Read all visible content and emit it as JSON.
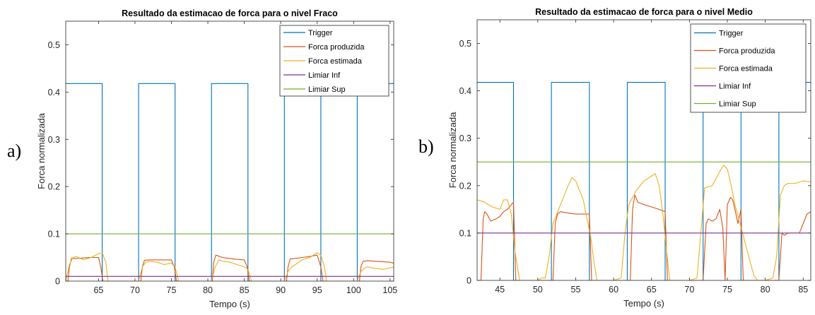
{
  "chart_data": [
    {
      "type": "line",
      "panel_label": "a)",
      "title": "Resultado da estimacao de forca para o nivel Fraco",
      "xlabel": "Tempo (s)",
      "ylabel": "Forca normalizada",
      "xlim": [
        60.5,
        105.5
      ],
      "ylim": [
        0,
        0.55
      ],
      "xticks": [
        65,
        70,
        75,
        80,
        85,
        90,
        95,
        100,
        105
      ],
      "yticks": [
        0,
        0.1,
        0.2,
        0.3,
        0.4,
        0.5
      ],
      "grid": false,
      "legend_position": "top-right",
      "series": [
        {
          "name": "Trigger",
          "color": "#0072BD",
          "x": [
            60.5,
            65.5,
            65.5,
            70.5,
            70.5,
            75.5,
            75.5,
            80.5,
            80.5,
            85.5,
            85.5,
            90.5,
            90.5,
            95.5,
            95.5,
            100.5,
            100.5,
            105.5
          ],
          "y": [
            0.418,
            0.418,
            0,
            0,
            0.418,
            0.418,
            0,
            0,
            0.418,
            0.418,
            0,
            0,
            0.418,
            0.418,
            0,
            0,
            0.418,
            0.418
          ]
        },
        {
          "name": "Forca produzida",
          "color": "#D95319",
          "x": [
            60.8,
            61.0,
            61.3,
            62,
            63,
            64,
            65,
            65.3,
            65.6,
            70.8,
            71.0,
            71.3,
            72,
            73,
            74,
            75,
            75.4,
            75.7,
            80.6,
            80.8,
            81.1,
            82,
            83,
            84,
            85,
            85.4,
            85.7,
            90.8,
            91.0,
            91.3,
            92,
            93,
            94,
            95,
            95.5,
            95.8,
            100.8,
            101.0,
            101.3,
            102,
            103,
            104,
            105,
            105.5
          ],
          "y": [
            0,
            0.03,
            0.048,
            0.048,
            0.049,
            0.05,
            0.05,
            0.03,
            0,
            0,
            0.03,
            0.044,
            0.045,
            0.045,
            0.045,
            0.045,
            0.03,
            0,
            0,
            0.04,
            0.055,
            0.05,
            0.048,
            0.046,
            0.045,
            0.03,
            0,
            0,
            0.03,
            0.047,
            0.048,
            0.05,
            0.052,
            0.055,
            0.03,
            0,
            0,
            0.03,
            0.042,
            0.043,
            0.042,
            0.041,
            0.04,
            0.038
          ]
        },
        {
          "name": "Forca estimada",
          "color": "#EDB120",
          "x": [
            60.5,
            61,
            61.5,
            62,
            62.5,
            63,
            64,
            65,
            65.5,
            66,
            66.3,
            70.5,
            71,
            71.5,
            72,
            73,
            74,
            75,
            75.5,
            76,
            80.5,
            81,
            81.5,
            82,
            83,
            84,
            85,
            85.5,
            86,
            90.5,
            91,
            91.5,
            92,
            93,
            94,
            95,
            95.5,
            96,
            96.3,
            100.5,
            101,
            101.5,
            102,
            103,
            104,
            105,
            105.5
          ],
          "y": [
            0,
            0.035,
            0.05,
            0.052,
            0.048,
            0.045,
            0.05,
            0.058,
            0.06,
            0.04,
            0,
            0,
            0.03,
            0.04,
            0.042,
            0.04,
            0.035,
            0.038,
            0.03,
            0,
            0,
            0.03,
            0.045,
            0.042,
            0.04,
            0.035,
            0.03,
            0.025,
            0,
            0,
            0.02,
            0.03,
            0.035,
            0.045,
            0.05,
            0.06,
            0.055,
            0.03,
            0,
            0,
            0.02,
            0.028,
            0.03,
            0.027,
            0.025,
            0.028,
            0.03
          ]
        },
        {
          "name": "Limiar Inf",
          "color": "#7E2F8E",
          "x": [
            60.5,
            105.5
          ],
          "y": [
            0.01,
            0.01
          ]
        },
        {
          "name": "Limiar Sup",
          "color": "#77AC30",
          "x": [
            60.5,
            105.5
          ],
          "y": [
            0.1,
            0.1
          ]
        }
      ]
    },
    {
      "type": "line",
      "panel_label": "b)",
      "title": "Resultado da estimacao de forca para o nivel Medio",
      "xlabel": "Tempo (s)",
      "ylabel": "Forca normalizada",
      "xlim": [
        42,
        86
      ],
      "ylim": [
        0,
        0.55
      ],
      "xticks": [
        45,
        50,
        55,
        60,
        65,
        70,
        75,
        80,
        85
      ],
      "yticks": [
        0,
        0.1,
        0.2,
        0.3,
        0.4,
        0.5
      ],
      "grid": false,
      "legend_position": "top-right",
      "series": [
        {
          "name": "Trigger",
          "color": "#0072BD",
          "x": [
            42,
            46.8,
            46.8,
            51.8,
            51.8,
            56.8,
            56.8,
            61.8,
            61.8,
            66.8,
            66.8,
            71.8,
            71.8,
            76.8,
            76.8,
            81.8,
            81.8,
            86
          ],
          "y": [
            0.418,
            0.418,
            0,
            0,
            0.418,
            0.418,
            0,
            0,
            0.418,
            0.418,
            0,
            0,
            0.418,
            0.418,
            0,
            0,
            0.418,
            0.418
          ]
        },
        {
          "name": "Forca produzida",
          "color": "#D95319",
          "x": [
            42.5,
            42.8,
            43.0,
            43.3,
            43.8,
            44.5,
            45,
            45.5,
            46,
            46.5,
            46.8,
            47.1,
            52.0,
            52.3,
            52.6,
            53,
            54,
            55,
            56,
            56.8,
            57.1,
            62.2,
            62.5,
            62.8,
            63.2,
            64,
            65,
            66,
            66.8,
            67.1,
            71.8,
            72.2,
            72.5,
            73,
            73.5,
            74,
            74.4,
            74.7,
            75,
            75.4,
            75.7,
            76,
            76.4,
            76.8,
            77.1,
            81.8,
            82.2,
            82.5,
            83,
            83.5,
            84,
            84.5,
            85,
            85.5,
            86
          ],
          "y": [
            0,
            0.13,
            0.145,
            0.14,
            0.125,
            0.13,
            0.135,
            0.145,
            0.15,
            0.16,
            0.165,
            0,
            0,
            0.12,
            0.14,
            0.145,
            0.142,
            0.14,
            0.14,
            0.14,
            0,
            0,
            0.15,
            0.18,
            0.165,
            0.16,
            0.155,
            0.15,
            0.145,
            0,
            0,
            0.12,
            0.13,
            0.125,
            0.13,
            0.15,
            0.11,
            0,
            0.16,
            0.175,
            0.17,
            0.15,
            0.12,
            0.15,
            0,
            0,
            0.1,
            0.095,
            0.1,
            0.1,
            0.1,
            0.1,
            0.12,
            0.14,
            0.145
          ]
        },
        {
          "name": "Forca estimada",
          "color": "#EDB120",
          "x": [
            42,
            43,
            44,
            45,
            45.5,
            46,
            46.5,
            47,
            47.6,
            48,
            50,
            50.5,
            51,
            51.5,
            52,
            53,
            54,
            54.5,
            55,
            55.5,
            56,
            56.5,
            57,
            57.4,
            57.8,
            60,
            61,
            61.5,
            62,
            63,
            64,
            65,
            65.5,
            66,
            66.5,
            67,
            67.4,
            70,
            71,
            71.5,
            72,
            73,
            74,
            74.5,
            75,
            75.5,
            76,
            76.5,
            77,
            77.5,
            78,
            78.5,
            79,
            80,
            81,
            81.5,
            82,
            82.5,
            83,
            84,
            85,
            86
          ],
          "y": [
            0.17,
            0.165,
            0.155,
            0.15,
            0.17,
            0.17,
            0.14,
            0.06,
            0,
            0,
            0,
            0.005,
            0.005,
            0.05,
            0.12,
            0.16,
            0.2,
            0.217,
            0.21,
            0.19,
            0.17,
            0.13,
            0.09,
            0.04,
            0,
            0,
            0.005,
            0.1,
            0.16,
            0.19,
            0.21,
            0.22,
            0.225,
            0.2,
            0.14,
            0.06,
            0,
            0,
            0.005,
            0.1,
            0.195,
            0.2,
            0.23,
            0.243,
            0.235,
            0.2,
            0.16,
            0.13,
            0.1,
            0.07,
            0.04,
            0.01,
            0,
            0,
            0.005,
            0.05,
            0.18,
            0.2,
            0.205,
            0.205,
            0.21,
            0.208
          ]
        },
        {
          "name": "Limiar Inf",
          "color": "#7E2F8E",
          "x": [
            42,
            86
          ],
          "y": [
            0.1,
            0.1
          ]
        },
        {
          "name": "Limiar Sup",
          "color": "#77AC30",
          "x": [
            42,
            86
          ],
          "y": [
            0.25,
            0.25
          ]
        }
      ]
    }
  ]
}
